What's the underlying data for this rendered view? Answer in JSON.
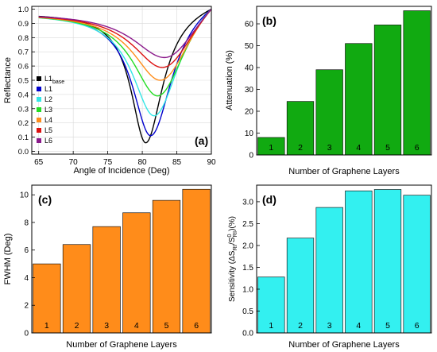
{
  "chart_data": [
    {
      "type": "line",
      "panel_label": "(a)",
      "xlabel": "Angle of Incidence (Deg)",
      "ylabel": "Reflectance",
      "xlim": [
        64,
        90
      ],
      "ylim": [
        -0.02,
        1.02
      ],
      "xticks": [
        "65",
        "70",
        "75",
        "80",
        "85",
        "90"
      ],
      "yticks": [
        "0.0",
        "0.1",
        "0.2",
        "0.3",
        "0.4",
        "0.5",
        "0.6",
        "0.7",
        "0.8",
        "0.9",
        "1.0"
      ],
      "grid": true,
      "legend_position": "left, lower half",
      "series": [
        {
          "name": "L1",
          "name_sub": "base",
          "color": "#000000",
          "min_x": 80.5,
          "min_y": 0.06,
          "width_left": 2.6,
          "width_right": 3.0,
          "base": 0.975
        },
        {
          "name": "L1",
          "color": "#0000cc",
          "min_x": 81.2,
          "min_y": 0.11,
          "width_left": 3.2,
          "width_right": 3.8,
          "base": 0.975
        },
        {
          "name": "L2",
          "color": "#33e6e6",
          "min_x": 81.7,
          "min_y": 0.25,
          "width_left": 3.8,
          "width_right": 4.5,
          "base": 0.975
        },
        {
          "name": "L3",
          "color": "#22dd22",
          "min_x": 82.2,
          "min_y": 0.39,
          "width_left": 4.3,
          "width_right": 5.0,
          "base": 0.975
        },
        {
          "name": "L4",
          "color": "#ff8c1a",
          "min_x": 82.6,
          "min_y": 0.5,
          "width_left": 4.8,
          "width_right": 5.5,
          "base": 0.975
        },
        {
          "name": "L5",
          "color": "#dd1111",
          "min_x": 82.9,
          "min_y": 0.59,
          "width_left": 5.2,
          "width_right": 6.0,
          "base": 0.975
        },
        {
          "name": "L6",
          "color": "#8b1a8b",
          "min_x": 83.2,
          "min_y": 0.66,
          "width_left": 5.6,
          "width_right": 6.4,
          "base": 0.975
        }
      ]
    },
    {
      "type": "bar",
      "panel_label": "(b)",
      "xlabel": "Number of Graphene Layers",
      "ylabel": "Attenuation (%)",
      "categories": [
        "1",
        "2",
        "3",
        "4",
        "5",
        "6"
      ],
      "values": [
        8,
        24.5,
        39,
        51,
        59.5,
        66
      ],
      "ylim": [
        0,
        68
      ],
      "yticks": [
        "0",
        "10",
        "20",
        "30",
        "40",
        "50",
        "60"
      ],
      "color": "#11aa11"
    },
    {
      "type": "bar",
      "panel_label": "(c)",
      "xlabel": "Number of Graphene Layers",
      "ylabel": "FWHM (Deg)",
      "categories": [
        "1",
        "2",
        "3",
        "4",
        "5",
        "6"
      ],
      "values": [
        5.0,
        6.4,
        7.7,
        8.7,
        9.6,
        10.4
      ],
      "ylim": [
        0,
        10.7
      ],
      "yticks": [
        "0",
        "2",
        "4",
        "6",
        "8",
        "10"
      ],
      "color": "#ff8c1a"
    },
    {
      "type": "bar",
      "panel_label": "(d)",
      "xlabel": "Number of Graphene Layers",
      "ylabel": "Sensitivity (ΔS",
      "ylabel_parts": [
        "Sensitivity (ΔS",
        "RI",
        "/S",
        "0",
        "RI",
        ")(%)"
      ],
      "categories": [
        "1",
        "2",
        "3",
        "4",
        "5",
        "6"
      ],
      "values": [
        1.28,
        2.17,
        2.87,
        3.25,
        3.28,
        3.15
      ],
      "ylim": [
        0,
        3.38
      ],
      "yticks": [
        "0.0",
        "0.5",
        "1.0",
        "1.5",
        "2.0",
        "2.5",
        "3.0"
      ],
      "color": "#33f0f0"
    }
  ]
}
